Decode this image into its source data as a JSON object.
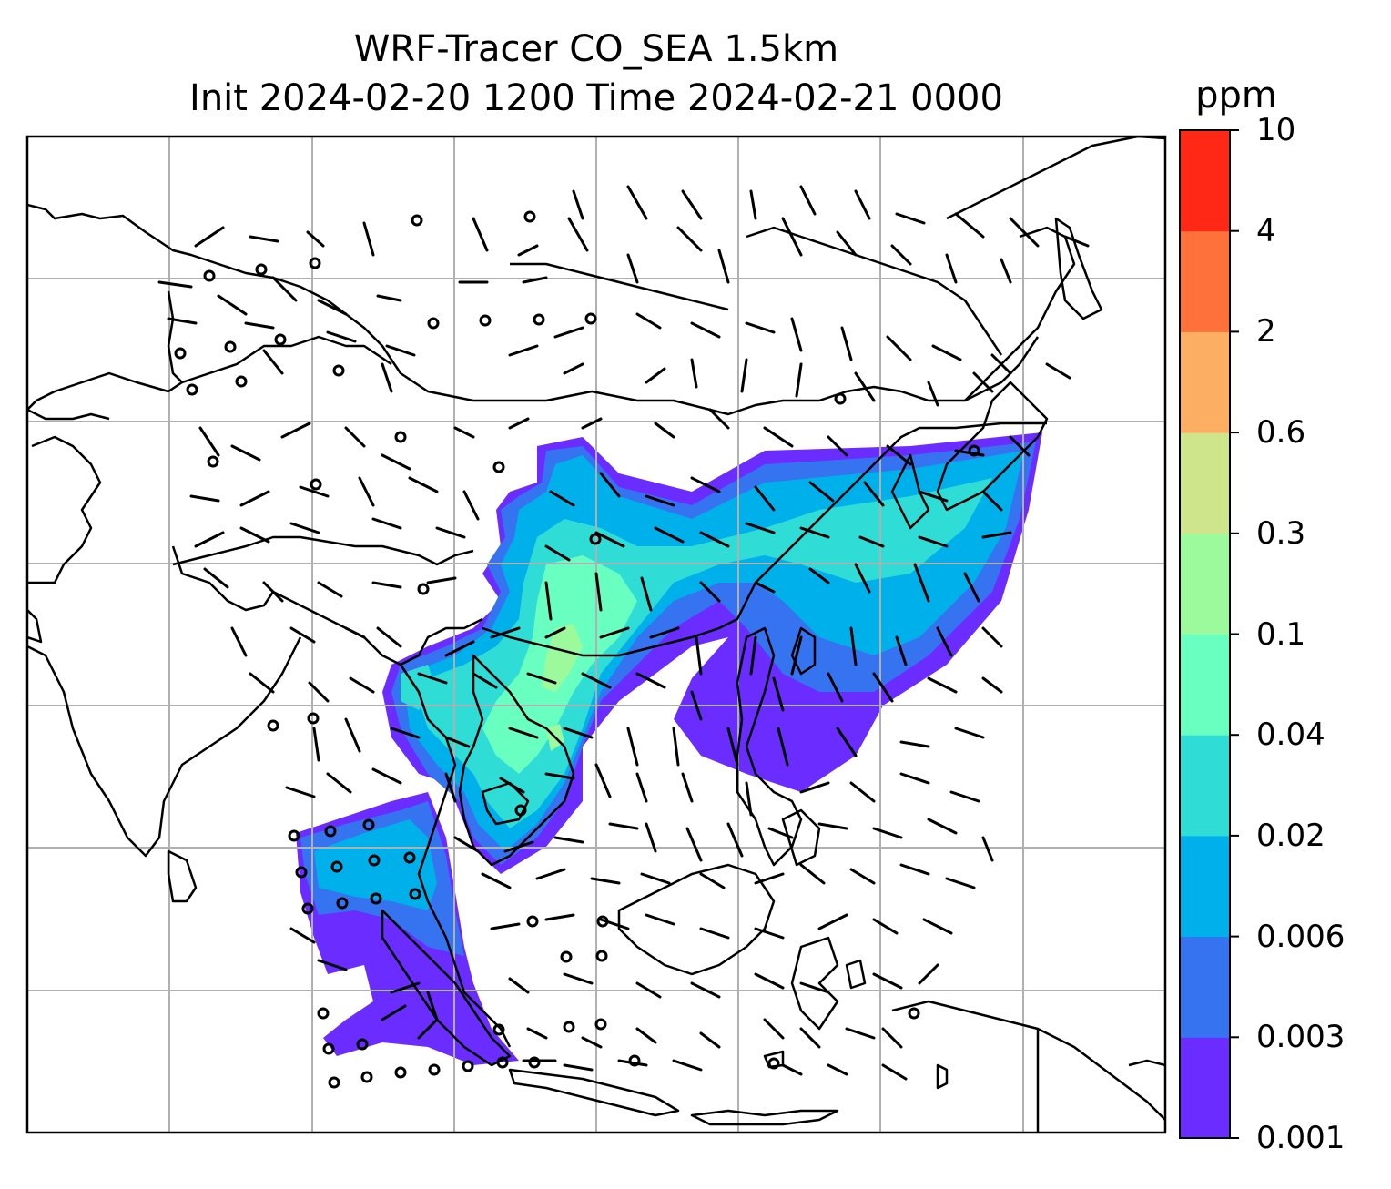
{
  "title": {
    "line1": "WRF-Tracer CO_SEA 1.5km",
    "line2": "Init 2024-02-20 1200 Time 2024-02-21 0000"
  },
  "colorbar": {
    "unit": "ppm",
    "levels": [
      "0.001",
      "0.003",
      "0.006",
      "0.02",
      "0.04",
      "0.1",
      "0.3",
      "0.6",
      "2",
      "4",
      "10"
    ],
    "colors": [
      "#6a2cff",
      "#3573f0",
      "#00b0eb",
      "#2fdcd6",
      "#68ffc1",
      "#9cfa9c",
      "#cfe58b",
      "#fcaf62",
      "#ff713b",
      "#ff2715"
    ]
  },
  "map": {
    "plume_colors": {
      "level1": "#6a2cff",
      "level2": "#3573f0",
      "level3": "#00b0eb",
      "level4": "#2fdcd6",
      "level5": "#68ffc1",
      "level6": "#9cfa9c"
    },
    "gridline_color": "#b0b0b0",
    "coastline_color": "#000000"
  }
}
